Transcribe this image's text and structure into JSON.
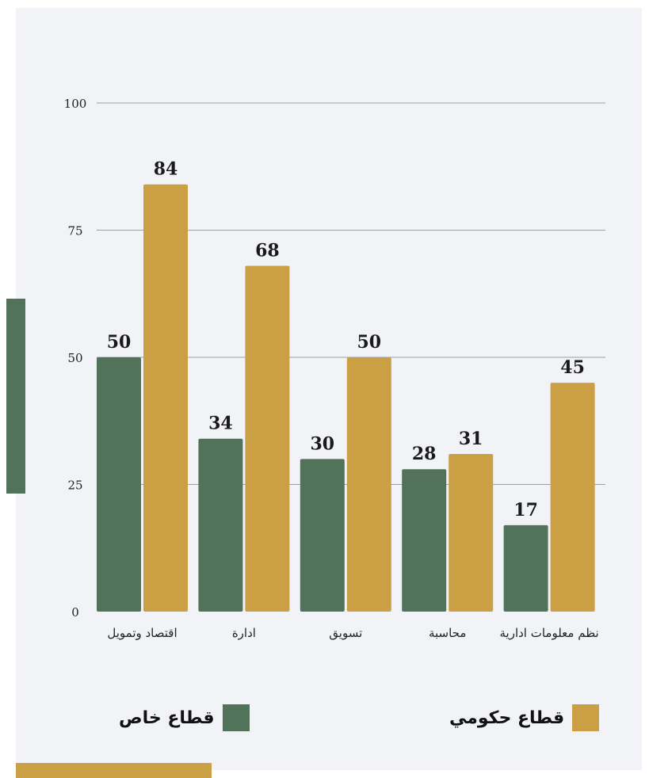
{
  "colors": {
    "private": "#53725a",
    "government": "#cba045",
    "grid": "#9aa0a6",
    "background": "#f1f3f7"
  },
  "legend": {
    "government_label": "قطاع حكومي",
    "private_label": "قطاع خاص"
  },
  "chart_data": {
    "type": "bar",
    "categories": [
      "اقتصاد وتمويل",
      "ادارة",
      "تسويق",
      "محاسبة",
      "نظم معلومات ادارية"
    ],
    "series": [
      {
        "name": "قطاع خاص",
        "values": [
          50,
          34,
          30,
          28,
          17
        ]
      },
      {
        "name": "قطاع حكومي",
        "values": [
          84,
          68,
          50,
          31,
          45
        ]
      }
    ],
    "yticks": [
      "0",
      "25",
      "50",
      "75",
      "100"
    ],
    "ylim": [
      0,
      100
    ],
    "grid": true,
    "data_labels": true,
    "legend_position": "bottom",
    "title": "",
    "xlabel": "",
    "ylabel": ""
  }
}
